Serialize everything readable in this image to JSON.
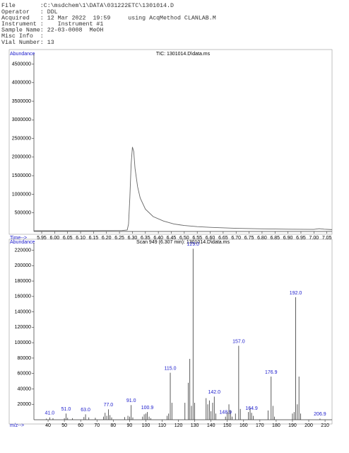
{
  "header": {
    "lines": [
      "File       :C:\\msdchem\\1\\DATA\\031222ETC\\1301014.D",
      "Operator   : DDL",
      "Acquired   : 12 Mar 2022  19:59     using AcqMethod CLANLAB.M",
      "Instrument :    Instrument #1",
      "Sample Name: 22-03-0008  MeOH",
      "Misc Info  :",
      "Vial Number: 13"
    ]
  },
  "chart_data": [
    {
      "type": "line",
      "title": "TIC: 1301014.D\\data.ms",
      "y_label": "Abundance",
      "x_label": "Time-->",
      "color": "#666666",
      "x": [
        5.92,
        5.95,
        6.0,
        6.1,
        6.2,
        6.26,
        6.28,
        6.285,
        6.29,
        6.295,
        6.3,
        6.305,
        6.31,
        6.32,
        6.33,
        6.35,
        6.38,
        6.42,
        6.46,
        6.5,
        6.55,
        6.6,
        6.7,
        6.8,
        6.9,
        7.0,
        7.02,
        7.04,
        7.07
      ],
      "values": [
        20000,
        20000,
        20000,
        20000,
        22000,
        25000,
        40000,
        200000,
        900000,
        1800000,
        2270000,
        2150000,
        1700000,
        1200000,
        900000,
        600000,
        400000,
        280000,
        200000,
        160000,
        130000,
        110000,
        85000,
        70000,
        60000,
        55000,
        75000,
        60000,
        50000
      ],
      "xlim": [
        5.92,
        7.07
      ],
      "ylim": [
        0,
        4700000
      ],
      "xticks": [
        5.95,
        {
          "value": 6.0,
          "label": "6.00"
        },
        6.05,
        {
          "value": 6.1,
          "label": "6.10"
        },
        6.15,
        {
          "value": 6.2,
          "label": "6.20"
        },
        6.25,
        {
          "value": 6.3,
          "label": "6.30"
        },
        6.35,
        {
          "value": 6.4,
          "label": "6.40"
        },
        6.45,
        {
          "value": 6.5,
          "label": "6.50"
        },
        6.55,
        {
          "value": 6.6,
          "label": "6.60"
        },
        6.65,
        {
          "value": 6.7,
          "label": "6.70"
        },
        6.75,
        {
          "value": 6.8,
          "label": "6.80"
        },
        6.85,
        {
          "value": 6.9,
          "label": "6.90"
        },
        6.95,
        {
          "value": 7.0,
          "label": "7.00"
        },
        7.05
      ],
      "yticks": [
        500000,
        1000000,
        1500000,
        2000000,
        2500000,
        3000000,
        3500000,
        4000000,
        4500000
      ]
    },
    {
      "type": "stick",
      "title": "Scan 949 (6.307 min): 1301014.D\\data.ms",
      "y_label": "Abundance",
      "x_label": "m/z-->",
      "color": "#333333",
      "label_color": "#1a1acc",
      "x": [
        39,
        41,
        43,
        50,
        51,
        52,
        55,
        62,
        63,
        65,
        69,
        74,
        75,
        76,
        77,
        78,
        79,
        87,
        89,
        90,
        91,
        92,
        98,
        99,
        100,
        100.9,
        102,
        103,
        113,
        114,
        115,
        116,
        124,
        126,
        127,
        128,
        129,
        130,
        137,
        138,
        139,
        140,
        141,
        142,
        143,
        148.9,
        150,
        151,
        152,
        153,
        155,
        157,
        158,
        163,
        164,
        164.9,
        166,
        175,
        176.9,
        178,
        179,
        190,
        191,
        192,
        193,
        194,
        195,
        206.9
      ],
      "values": [
        1500,
        3000,
        2000,
        2000,
        8000,
        2500,
        2000,
        3500,
        7000,
        3000,
        2500,
        4000,
        9000,
        5000,
        13500,
        6000,
        3000,
        3500,
        5000,
        4000,
        19000,
        3000,
        4000,
        7000,
        8000,
        10000,
        4000,
        2000,
        5000,
        8000,
        61000,
        22000,
        22000,
        48000,
        79000,
        18000,
        222000,
        22000,
        28000,
        20000,
        25000,
        11000,
        22000,
        30000,
        8000,
        4000,
        10000,
        20000,
        12000,
        4000,
        8000,
        96000,
        14000,
        10000,
        16000,
        9000,
        5000,
        12000,
        56000,
        18000,
        4000,
        8000,
        10000,
        159000,
        20000,
        56000,
        8000,
        1500
      ],
      "peak_labels": [
        {
          "value": 41,
          "label": "41.0"
        },
        {
          "value": 51,
          "label": "51.0"
        },
        {
          "value": 63,
          "label": "63.0"
        },
        {
          "value": 77,
          "label": "77.0"
        },
        {
          "value": 91,
          "label": "91.0"
        },
        {
          "value": 100.9,
          "label": "100.9"
        },
        {
          "value": 115,
          "label": "115.0"
        },
        {
          "value": 129,
          "label": "129.0"
        },
        {
          "value": 142,
          "label": "142.0"
        },
        {
          "value": 148.9,
          "label": "148.9"
        },
        {
          "value": 157,
          "label": "157.0"
        },
        {
          "value": 164.9,
          "label": "164.9"
        },
        {
          "value": 176.9,
          "label": "176.9"
        },
        {
          "value": 192,
          "label": "192.0"
        },
        {
          "value": 206.9,
          "label": "206.9"
        }
      ],
      "xlim": [
        31.3,
        214.3
      ],
      "ylim": [
        0,
        226000
      ],
      "xticks": [
        40,
        50,
        60,
        70,
        80,
        90,
        100,
        110,
        120,
        130,
        140,
        150,
        160,
        170,
        180,
        190,
        200,
        210
      ],
      "yticks": [
        20000,
        40000,
        60000,
        80000,
        100000,
        120000,
        140000,
        160000,
        180000,
        200000,
        220000
      ]
    }
  ]
}
